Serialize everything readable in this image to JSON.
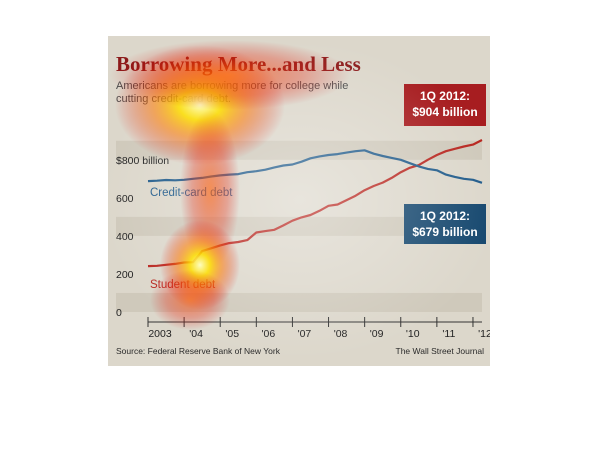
{
  "title": "Borrowing More...and Less",
  "subtitle": "Americans are borrowing more for college while cutting credit-card debt.",
  "source": "Source: Federal Reserve Bank of New York",
  "credit": "The Wall Street Journal",
  "colors": {
    "student_debt": "#b8261f",
    "credit_card_debt": "#1f5a8a",
    "title": "#8b1a1a"
  },
  "callouts": {
    "student": {
      "line1": "1Q 2012:",
      "line2": "$904 billion"
    },
    "credit": {
      "line1": "1Q 2012:",
      "line2": "$679 billion"
    }
  },
  "chart_data": {
    "type": "line",
    "title": "Borrowing More...and Less",
    "subtitle": "Americans are borrowing more for college while cutting credit-card debt.",
    "xlabel": "",
    "ylabel": "",
    "unit": "billion",
    "ylim": [
      0,
      904
    ],
    "xlim": [
      2003.0,
      2012.25
    ],
    "y_tick_labels": [
      "0",
      "200",
      "400",
      "600",
      "$800 billion"
    ],
    "y_ticks": [
      0,
      200,
      400,
      600,
      800
    ],
    "x_tick_labels": [
      "2003",
      "'04",
      "'05",
      "'06",
      "'07",
      "'08",
      "'09",
      "'10",
      "'11",
      "'12"
    ],
    "x_ticks": [
      2003,
      2004,
      2005,
      2006,
      2007,
      2008,
      2009,
      2010,
      2011,
      2012
    ],
    "grid": true,
    "series": [
      {
        "name": "Student debt",
        "x": [
          2003.0,
          2003.25,
          2003.5,
          2003.75,
          2004.0,
          2004.25,
          2004.5,
          2004.75,
          2005.0,
          2005.25,
          2005.5,
          2005.75,
          2006.0,
          2006.25,
          2006.5,
          2006.75,
          2007.0,
          2007.25,
          2007.5,
          2007.75,
          2008.0,
          2008.25,
          2008.5,
          2008.75,
          2009.0,
          2009.25,
          2009.5,
          2009.75,
          2010.0,
          2010.25,
          2010.5,
          2010.75,
          2011.0,
          2011.25,
          2011.5,
          2011.75,
          2012.0,
          2012.25
        ],
        "values": [
          241,
          243,
          248,
          253,
          260,
          262,
          320,
          335,
          350,
          362,
          368,
          378,
          418,
          425,
          432,
          455,
          480,
          497,
          510,
          532,
          558,
          565,
          588,
          611,
          640,
          662,
          680,
          705,
          735,
          758,
          772,
          800,
          825,
          845,
          858,
          870,
          880,
          904
        ]
      },
      {
        "name": "Credit-card debt",
        "x": [
          2003.0,
          2003.25,
          2003.5,
          2003.75,
          2004.0,
          2004.25,
          2004.5,
          2004.75,
          2005.0,
          2005.25,
          2005.5,
          2005.75,
          2006.0,
          2006.25,
          2006.5,
          2006.75,
          2007.0,
          2007.25,
          2007.5,
          2007.75,
          2008.0,
          2008.25,
          2008.5,
          2008.75,
          2009.0,
          2009.25,
          2009.5,
          2009.75,
          2010.0,
          2010.25,
          2010.5,
          2010.75,
          2011.0,
          2011.25,
          2011.5,
          2011.75,
          2012.0,
          2012.25
        ],
        "values": [
          688,
          690,
          694,
          692,
          695,
          700,
          705,
          712,
          718,
          722,
          725,
          735,
          740,
          748,
          760,
          770,
          775,
          790,
          808,
          818,
          825,
          830,
          838,
          845,
          850,
          832,
          820,
          810,
          800,
          782,
          765,
          752,
          745,
          722,
          710,
          700,
          695,
          679
        ]
      }
    ]
  },
  "heatmap_overlay": "attention-heatmap"
}
